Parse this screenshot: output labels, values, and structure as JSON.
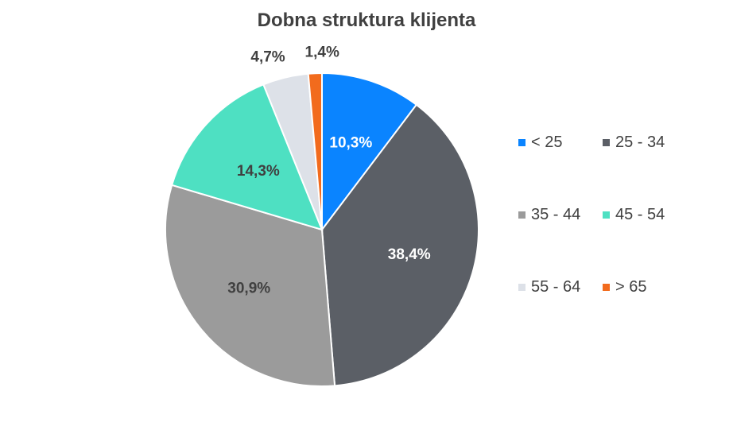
{
  "chart_data": {
    "type": "pie",
    "title": "Dobna struktura klijenta",
    "slices": [
      {
        "name": "< 25",
        "value": 10.3,
        "label": "10,3%",
        "color": "#0A84FF",
        "label_color": "#ffffff"
      },
      {
        "name": "25 - 34",
        "value": 38.4,
        "label": "38,4%",
        "color": "#5B5F66",
        "label_color": "#ffffff"
      },
      {
        "name": "35 - 44",
        "value": 30.9,
        "label": "30,9%",
        "color": "#9B9B9B",
        "label_color": "#404040"
      },
      {
        "name": "45 - 54",
        "value": 14.3,
        "label": "14,3%",
        "color": "#4EE0C2",
        "label_color": "#404040"
      },
      {
        "name": "55 - 64",
        "value": 4.7,
        "label": "4,7%",
        "color": "#DDE1E8",
        "label_color": "#404040"
      },
      {
        "name": "> 65",
        "value": 1.4,
        "label": "1,4%",
        "color": "#F26B1D",
        "label_color": "#404040"
      }
    ],
    "legend": {
      "position": "right",
      "columns": 2
    }
  }
}
